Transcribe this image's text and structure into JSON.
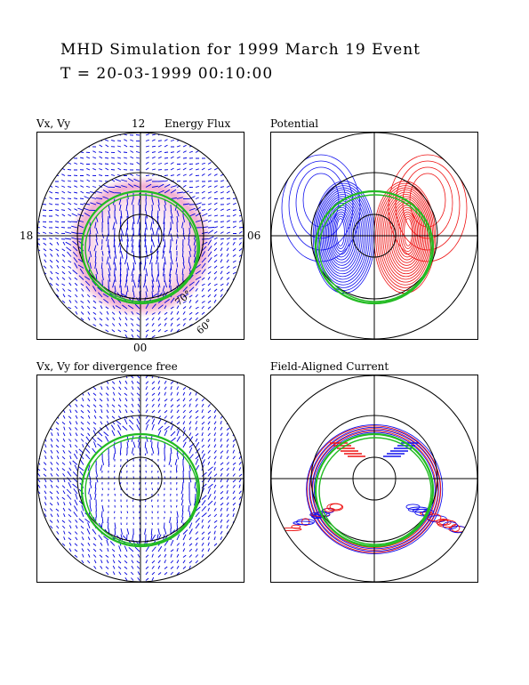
{
  "header": {
    "title": "MHD Simulation for 1999 March 19 Event",
    "timestamp": "T = 20-03-1999  00:10:00"
  },
  "chart_data": [
    {
      "type": "vector",
      "title": "Vx, Vy",
      "annotation": "Energy Flux",
      "time_labels": {
        "top": "12",
        "bottom": "00",
        "left": "18",
        "right": "06"
      },
      "latitude_labels": [
        "70°",
        "60°"
      ],
      "colors": {
        "vectors": "#0000dd",
        "energy_flux": "#f0a0c8",
        "oval": "#22bb22"
      }
    },
    {
      "type": "contour",
      "title": "Potential",
      "colors": {
        "positive": "#ee1111",
        "negative": "#1111ee",
        "oval": "#22bb22"
      }
    },
    {
      "type": "vector",
      "title": "Vx, Vy  for divergence free",
      "colors": {
        "vectors": "#0000dd",
        "oval": "#22bb22"
      }
    },
    {
      "type": "contour",
      "title": "Field-Aligned Current",
      "colors": {
        "positive": "#ee1111",
        "negative": "#1111ee",
        "oval": "#22bb22"
      }
    }
  ]
}
